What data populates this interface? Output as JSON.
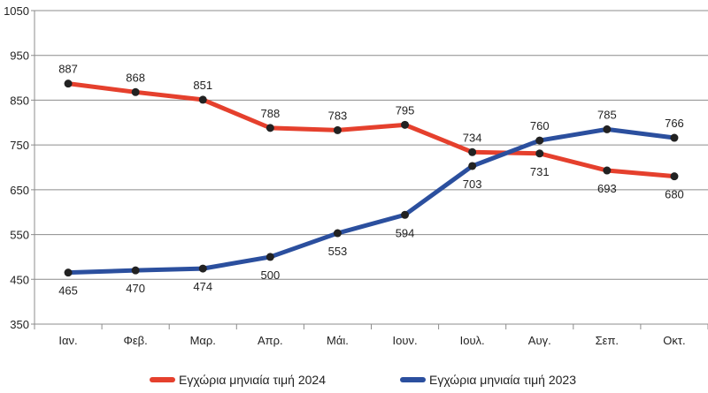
{
  "chart_data": {
    "type": "line",
    "title": "",
    "xlabel": "",
    "ylabel": "",
    "ylim": [
      350,
      1050
    ],
    "yticks": [
      350,
      450,
      550,
      650,
      750,
      850,
      950,
      1050
    ],
    "grid": true,
    "legend_position": "bottom",
    "categories": [
      "Ιαν.",
      "Φεβ.",
      "Μαρ.",
      "Απρ.",
      "Μάι.",
      "Ιουν.",
      "Ιουλ.",
      "Αυγ.",
      "Σεπ.",
      "Οκτ."
    ],
    "series": [
      {
        "name": "Εγχώρια μηνιαία τιμή 2024",
        "color": "#e5402d",
        "values": [
          887,
          868,
          851,
          788,
          783,
          795,
          734,
          731,
          693,
          680
        ]
      },
      {
        "name": "Εγχώρια μηνιαία τιμή 2023",
        "color": "#2b4f9e",
        "values": [
          465,
          470,
          474,
          500,
          553,
          594,
          703,
          760,
          785,
          766
        ]
      }
    ],
    "marker_color": "#222222",
    "grid_color": "#8c8c8c"
  }
}
